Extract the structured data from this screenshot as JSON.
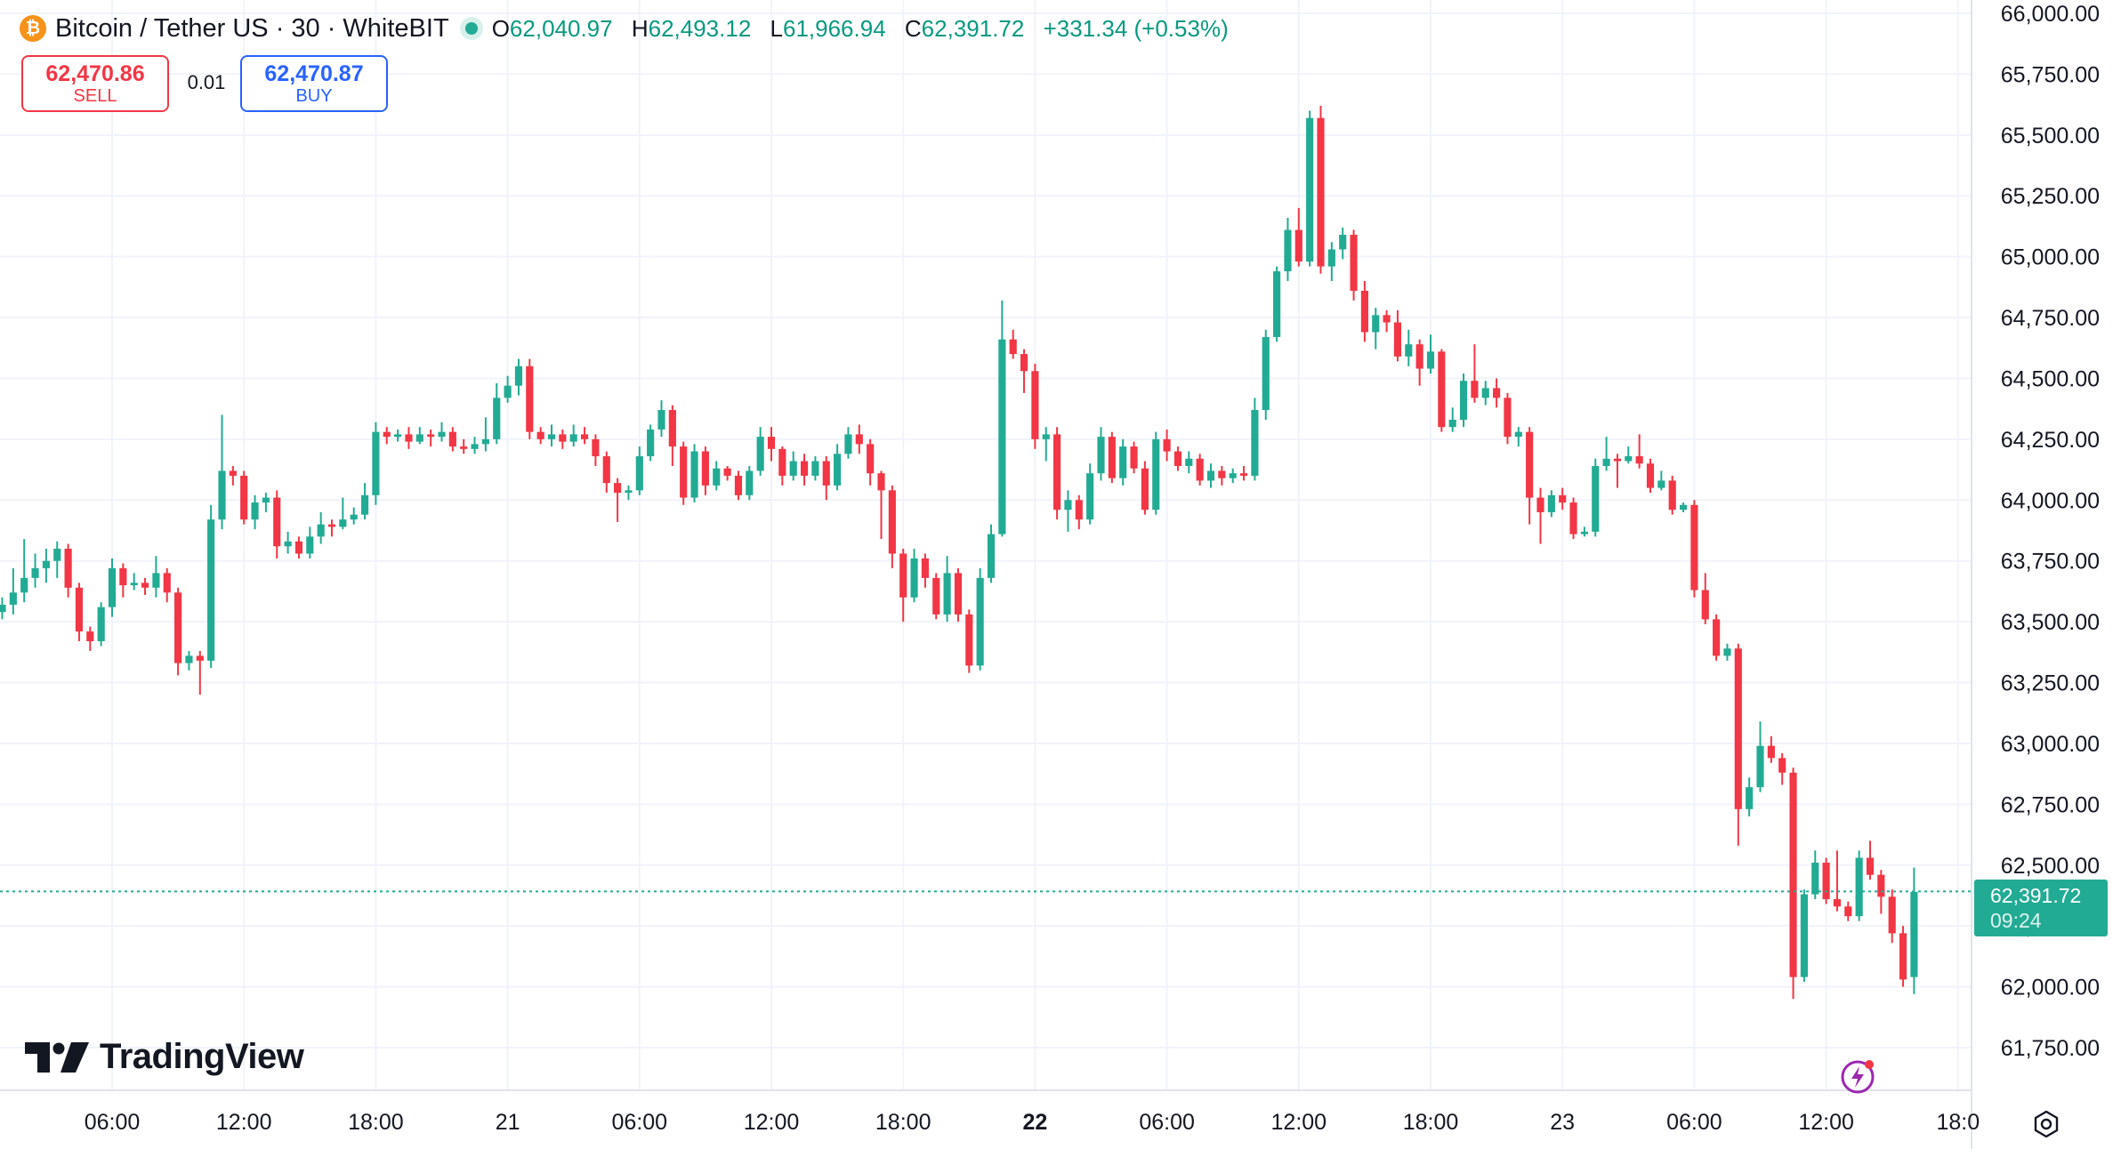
{
  "header": {
    "title": "Bitcoin / Tether US · 30 · WhiteBIT",
    "coin_glyph": "₿",
    "open_label": "O",
    "open": "62,040.97",
    "high_label": "H",
    "high": "62,493.12",
    "low_label": "L",
    "low": "61,966.94",
    "close_label": "C",
    "close": "62,391.72",
    "change": "+331.34 (+0.53%)"
  },
  "trade": {
    "sell_price": "62,470.86",
    "sell_label": "SELL",
    "quantity": "0.01",
    "buy_price": "62,470.87",
    "buy_label": "BUY"
  },
  "price_label": {
    "price": "62,391.72",
    "countdown": "09:24"
  },
  "logo": {
    "text": "TradingView",
    "icon": "tradingview-logo-icon"
  },
  "icons": {
    "settings": "gear-icon",
    "flash": "lightning-icon"
  },
  "colors": {
    "up": "#22ab94",
    "down": "#f23645",
    "grid": "#f0f3fa",
    "text": "#131722"
  },
  "chart_data": {
    "type": "candlestick",
    "interval_minutes": 30,
    "ylim": [
      61650,
      66000
    ],
    "y_ticks": [
      61750,
      62000,
      62250,
      62500,
      62750,
      63000,
      63250,
      63500,
      63750,
      64000,
      64250,
      64500,
      64750,
      65000,
      65250,
      65500,
      65750,
      66000
    ],
    "y_tick_labels": [
      "61,750.00",
      "62,000.00",
      "62,250.00",
      "62,500.00",
      "62,750.00",
      "63,000.00",
      "63,250.00",
      "63,500.00",
      "63,750.00",
      "64,000.00",
      "64,250.00",
      "64,500.00",
      "64,750.00",
      "65,000.00",
      "65,250.00",
      "65,500.00",
      "65,750.00",
      "66,000.00"
    ],
    "x_tick_labels": [
      "06:00",
      "12:00",
      "18:00",
      "21",
      "06:00",
      "12:00",
      "18:00",
      "22",
      "06:00",
      "12:00",
      "18:00",
      "23",
      "06:00",
      "12:00",
      "18:0"
    ],
    "x_tick_bold": [
      false,
      false,
      false,
      false,
      false,
      false,
      false,
      true,
      false,
      false,
      false,
      false,
      false,
      false,
      false
    ],
    "current_price": 62391.72,
    "candles": [
      [
        63580,
        63520,
        63600,
        63420
      ],
      [
        63520,
        63380,
        63540,
        63350
      ],
      [
        63380,
        63360,
        63450,
        63330
      ],
      [
        63360,
        63470,
        63490,
        63340
      ],
      [
        63470,
        63540,
        63580,
        63440
      ],
      [
        63540,
        63570,
        63600,
        63510
      ],
      [
        63570,
        63620,
        63720,
        63530
      ],
      [
        63620,
        63680,
        63840,
        63580
      ],
      [
        63680,
        63720,
        63780,
        63640
      ],
      [
        63720,
        63750,
        63800,
        63660
      ],
      [
        63750,
        63800,
        63830,
        63680
      ],
      [
        63800,
        63640,
        63820,
        63600
      ],
      [
        63640,
        63460,
        63660,
        63420
      ],
      [
        63460,
        63420,
        63480,
        63380
      ],
      [
        63420,
        63560,
        63580,
        63400
      ],
      [
        63560,
        63720,
        63760,
        63520
      ],
      [
        63720,
        63650,
        63740,
        63600
      ],
      [
        63650,
        63660,
        63700,
        63630
      ],
      [
        63660,
        63640,
        63680,
        63610
      ],
      [
        63640,
        63700,
        63770,
        63600
      ],
      [
        63700,
        63620,
        63720,
        63580
      ],
      [
        63620,
        63330,
        63640,
        63280
      ],
      [
        63330,
        63360,
        63380,
        63300
      ],
      [
        63360,
        63340,
        63380,
        63200
      ],
      [
        63340,
        63920,
        63980,
        63310
      ],
      [
        63920,
        64120,
        64350,
        63880
      ],
      [
        64120,
        64100,
        64140,
        64060
      ],
      [
        64100,
        63920,
        64120,
        63900
      ],
      [
        63920,
        63990,
        64020,
        63880
      ],
      [
        63990,
        64010,
        64030,
        63950
      ],
      [
        64010,
        63810,
        64040,
        63760
      ],
      [
        63810,
        63830,
        63870,
        63780
      ],
      [
        63830,
        63780,
        63850,
        63760
      ],
      [
        63780,
        63850,
        63890,
        63760
      ],
      [
        63850,
        63900,
        63950,
        63820
      ],
      [
        63900,
        63890,
        63920,
        63850
      ],
      [
        63890,
        63920,
        64010,
        63880
      ],
      [
        63920,
        63940,
        63970,
        63900
      ],
      [
        63940,
        64020,
        64070,
        63920
      ],
      [
        64020,
        64280,
        64320,
        63980
      ],
      [
        64280,
        64260,
        64300,
        64230
      ],
      [
        64260,
        64270,
        64290,
        64240
      ],
      [
        64270,
        64240,
        64300,
        64210
      ],
      [
        64240,
        64270,
        64300,
        64230
      ],
      [
        64270,
        64260,
        64290,
        64220
      ],
      [
        64260,
        64280,
        64320,
        64240
      ],
      [
        64280,
        64220,
        64300,
        64200
      ],
      [
        64220,
        64210,
        64250,
        64190
      ],
      [
        64210,
        64230,
        64260,
        64190
      ],
      [
        64230,
        64250,
        64340,
        64200
      ],
      [
        64250,
        64420,
        64480,
        64230
      ],
      [
        64420,
        64470,
        64510,
        64400
      ],
      [
        64470,
        64550,
        64580,
        64430
      ],
      [
        64550,
        64280,
        64580,
        64250
      ],
      [
        64280,
        64250,
        64300,
        64230
      ],
      [
        64250,
        64270,
        64310,
        64220
      ],
      [
        64270,
        64240,
        64290,
        64210
      ],
      [
        64240,
        64270,
        64310,
        64220
      ],
      [
        64270,
        64250,
        64300,
        64230
      ],
      [
        64250,
        64180,
        64270,
        64140
      ],
      [
        64180,
        64070,
        64200,
        64030
      ],
      [
        64070,
        64030,
        64090,
        63910
      ],
      [
        64030,
        64040,
        64060,
        64000
      ],
      [
        64040,
        64180,
        64220,
        64020
      ],
      [
        64180,
        64290,
        64310,
        64160
      ],
      [
        64290,
        64370,
        64410,
        64260
      ],
      [
        64370,
        64220,
        64390,
        64140
      ],
      [
        64220,
        64010,
        64240,
        63980
      ],
      [
        64010,
        64200,
        64230,
        63990
      ],
      [
        64200,
        64060,
        64220,
        64020
      ],
      [
        64060,
        64130,
        64160,
        64040
      ],
      [
        64130,
        64100,
        64140,
        64080
      ],
      [
        64100,
        64020,
        64120,
        64000
      ],
      [
        64020,
        64120,
        64140,
        64000
      ],
      [
        64120,
        64260,
        64300,
        64100
      ],
      [
        64260,
        64210,
        64300,
        64160
      ],
      [
        64210,
        64100,
        64220,
        64060
      ],
      [
        64100,
        64160,
        64200,
        64080
      ],
      [
        64160,
        64100,
        64190,
        64060
      ],
      [
        64100,
        64160,
        64180,
        64080
      ],
      [
        64160,
        64060,
        64180,
        64000
      ],
      [
        64060,
        64190,
        64230,
        64040
      ],
      [
        64190,
        64270,
        64300,
        64170
      ],
      [
        64270,
        64230,
        64310,
        64190
      ],
      [
        64230,
        64110,
        64250,
        64060
      ],
      [
        64110,
        64040,
        64120,
        63840
      ],
      [
        64040,
        63780,
        64060,
        63720
      ],
      [
        63780,
        63600,
        63800,
        63500
      ],
      [
        63600,
        63760,
        63800,
        63580
      ],
      [
        63760,
        63680,
        63780,
        63640
      ],
      [
        63680,
        63530,
        63700,
        63510
      ],
      [
        63530,
        63700,
        63770,
        63500
      ],
      [
        63700,
        63530,
        63720,
        63500
      ],
      [
        63530,
        63320,
        63550,
        63290
      ],
      [
        63320,
        63680,
        63720,
        63300
      ],
      [
        63680,
        63860,
        63900,
        63660
      ],
      [
        63860,
        64660,
        64820,
        63850
      ],
      [
        64660,
        64600,
        64700,
        64580
      ],
      [
        64600,
        64530,
        64620,
        64440
      ],
      [
        64530,
        64250,
        64560,
        64210
      ],
      [
        64250,
        64270,
        64300,
        64160
      ],
      [
        64270,
        63960,
        64300,
        63920
      ],
      [
        63960,
        64000,
        64040,
        63870
      ],
      [
        64000,
        63920,
        64020,
        63880
      ],
      [
        63920,
        64110,
        64150,
        63900
      ],
      [
        64110,
        64260,
        64300,
        64080
      ],
      [
        64260,
        64090,
        64280,
        64070
      ],
      [
        64090,
        64220,
        64250,
        64060
      ],
      [
        64220,
        64130,
        64240,
        64110
      ],
      [
        64130,
        63960,
        64160,
        63940
      ],
      [
        63960,
        64250,
        64280,
        63940
      ],
      [
        64250,
        64200,
        64290,
        64160
      ],
      [
        64200,
        64140,
        64220,
        64120
      ],
      [
        64140,
        64170,
        64200,
        64110
      ],
      [
        64170,
        64080,
        64190,
        64060
      ],
      [
        64080,
        64120,
        64150,
        64050
      ],
      [
        64120,
        64090,
        64140,
        64060
      ],
      [
        64090,
        64110,
        64130,
        64070
      ],
      [
        64110,
        64100,
        64140,
        64080
      ],
      [
        64100,
        64370,
        64420,
        64080
      ],
      [
        64370,
        64670,
        64700,
        64330
      ],
      [
        64670,
        64940,
        64960,
        64650
      ],
      [
        64940,
        65110,
        65160,
        64900
      ],
      [
        65110,
        64980,
        65200,
        64960
      ],
      [
        64980,
        65570,
        65600,
        64960
      ],
      [
        65570,
        64960,
        65620,
        64930
      ],
      [
        64960,
        65030,
        65060,
        64900
      ],
      [
        65030,
        65090,
        65120,
        64990
      ],
      [
        65090,
        64860,
        65110,
        64820
      ],
      [
        64860,
        64690,
        64900,
        64650
      ],
      [
        64690,
        64760,
        64790,
        64620
      ],
      [
        64760,
        64730,
        64780,
        64690
      ],
      [
        64730,
        64590,
        64780,
        64570
      ],
      [
        64590,
        64640,
        64700,
        64550
      ],
      [
        64640,
        64540,
        64660,
        64470
      ],
      [
        64540,
        64610,
        64680,
        64520
      ],
      [
        64610,
        64300,
        64620,
        64280
      ],
      [
        64300,
        64330,
        64380,
        64280
      ],
      [
        64330,
        64490,
        64520,
        64300
      ],
      [
        64490,
        64420,
        64640,
        64400
      ],
      [
        64420,
        64460,
        64490,
        64390
      ],
      [
        64460,
        64420,
        64500,
        64380
      ],
      [
        64420,
        64260,
        64440,
        64230
      ],
      [
        64260,
        64280,
        64300,
        64220
      ],
      [
        64280,
        64010,
        64300,
        63900
      ],
      [
        64010,
        63950,
        64050,
        63820
      ],
      [
        63950,
        64020,
        64040,
        63930
      ],
      [
        64020,
        63990,
        64050,
        63960
      ],
      [
        63990,
        63860,
        64010,
        63840
      ],
      [
        63860,
        63870,
        63890,
        63850
      ],
      [
        63870,
        64140,
        64170,
        63850
      ],
      [
        64140,
        64170,
        64260,
        64120
      ],
      [
        64170,
        64160,
        64190,
        64050
      ],
      [
        64160,
        64180,
        64220,
        64150
      ],
      [
        64180,
        64150,
        64270,
        64130
      ],
      [
        64150,
        64050,
        64170,
        64030
      ],
      [
        64050,
        64080,
        64120,
        64040
      ],
      [
        64080,
        63960,
        64100,
        63940
      ],
      [
        63960,
        63980,
        63990,
        63950
      ],
      [
        63980,
        63630,
        64000,
        63600
      ],
      [
        63630,
        63510,
        63700,
        63490
      ],
      [
        63510,
        63360,
        63530,
        63340
      ],
      [
        63360,
        63390,
        63410,
        63340
      ],
      [
        63390,
        62730,
        63410,
        62580
      ],
      [
        62730,
        62820,
        62860,
        62700
      ],
      [
        62820,
        62990,
        63090,
        62800
      ],
      [
        62990,
        62940,
        63030,
        62920
      ],
      [
        62940,
        62880,
        62960,
        62830
      ],
      [
        62880,
        62040,
        62900,
        61950
      ],
      [
        62040,
        62380,
        62400,
        62020
      ],
      [
        62380,
        62510,
        62560,
        62360
      ],
      [
        62510,
        62360,
        62530,
        62340
      ],
      [
        62360,
        62330,
        62560,
        62310
      ],
      [
        62330,
        62290,
        62350,
        62270
      ],
      [
        62290,
        62530,
        62560,
        62270
      ],
      [
        62530,
        62460,
        62600,
        62440
      ],
      [
        62460,
        62370,
        62480,
        62300
      ],
      [
        62370,
        62220,
        62400,
        62180
      ],
      [
        62220,
        62030,
        62250,
        62000
      ],
      [
        62040,
        62390,
        62490,
        61970
      ]
    ]
  }
}
